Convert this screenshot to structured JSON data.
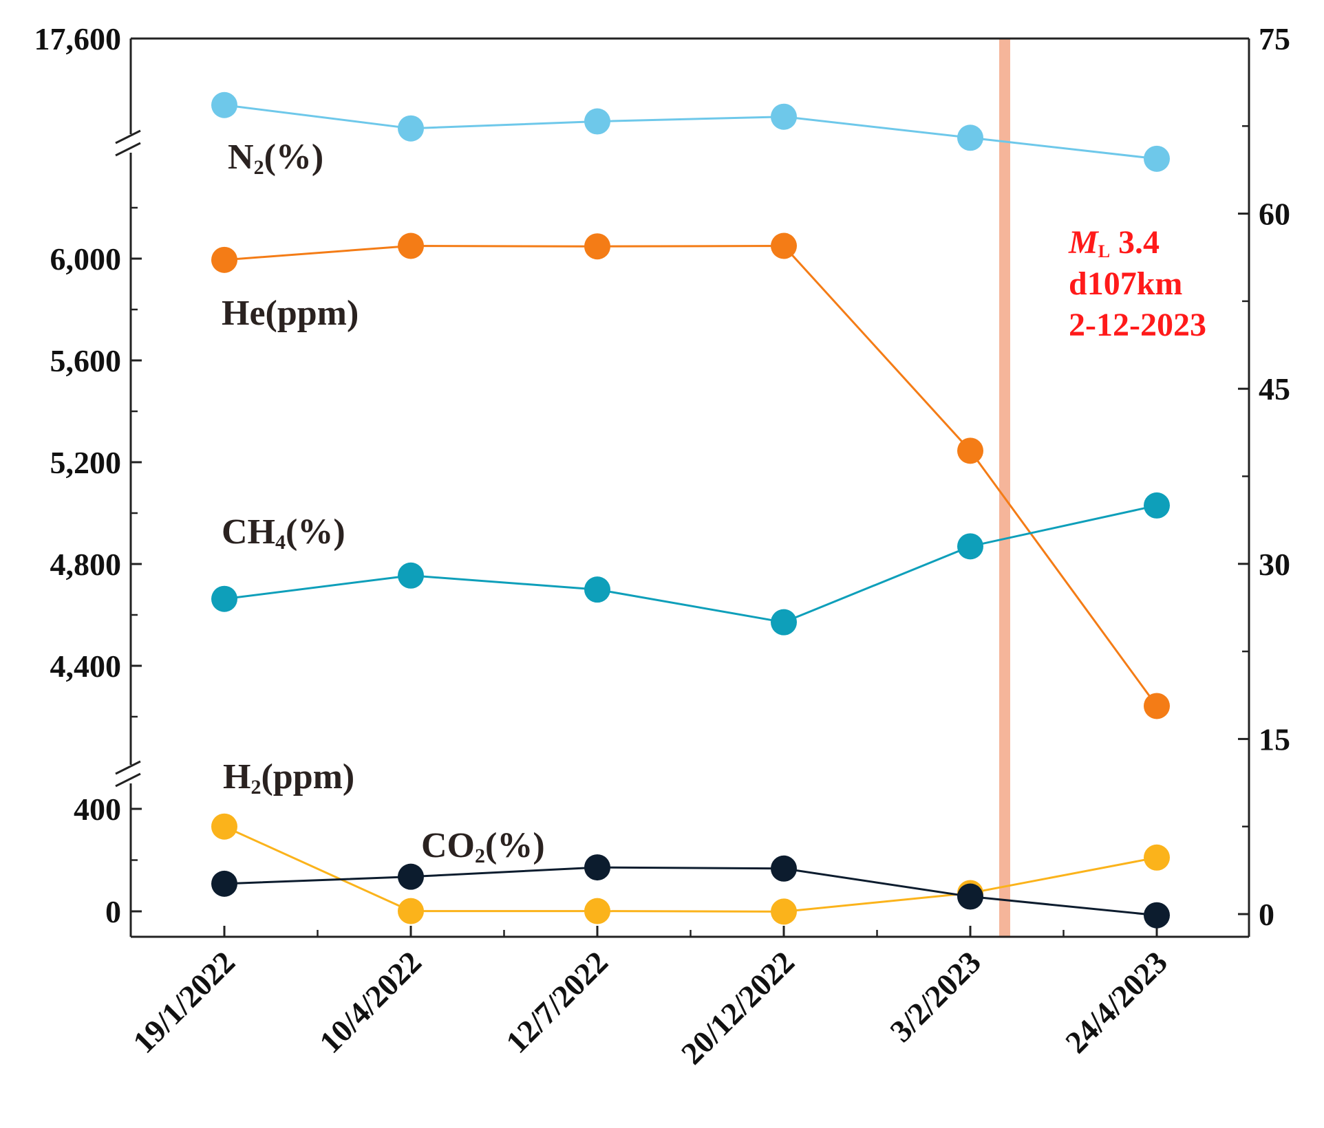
{
  "chart_data": {
    "type": "line",
    "title": "",
    "categories": [
      "19/1/2022",
      "10/4/2022",
      "12/7/2022",
      "20/12/2022",
      "3/2/2023",
      "24/4/2023"
    ],
    "left_axis": {
      "ticks": [
        "17,600",
        "6,000",
        "5,600",
        "5,200",
        "4,800",
        "4,400",
        "400",
        "0"
      ],
      "broken": true,
      "segments": [
        {
          "name": "H2 / CO2",
          "range": [
            -100,
            400
          ]
        },
        {
          "name": "CH4 / He",
          "range": [
            4200,
            6400
          ]
        },
        {
          "name": "N2",
          "range": [
            17500,
            17600
          ]
        }
      ]
    },
    "right_axis": {
      "ylim": [
        -2,
        75
      ],
      "ticks": [
        "75",
        "60",
        "45",
        "30",
        "15",
        "0"
      ],
      "minor_step": 7.5
    },
    "series": [
      {
        "name": "N2(%)",
        "label_main": "N",
        "label_sub": "2",
        "label_tail": "(%)",
        "axis": "right",
        "color": "#6ec8ea",
        "values": [
          69.3,
          67.3,
          67.9,
          68.3,
          66.5,
          64.7
        ]
      },
      {
        "name": "He(ppm)",
        "label_main": "He(ppm)",
        "label_sub": "",
        "label_tail": "",
        "axis": "left",
        "color": "#f47c16",
        "values": [
          5995,
          6050,
          6048,
          6050,
          5245,
          4242
        ]
      },
      {
        "name": "CH4(%)",
        "label_main": "CH",
        "label_sub": "4",
        "label_tail": "(%)",
        "axis": "right",
        "color": "#0e9fba",
        "values": [
          27.0,
          29.0,
          27.8,
          25.0,
          31.5,
          35.0
        ]
      },
      {
        "name": "H2(ppm)",
        "label_main": "H",
        "label_sub": "2",
        "label_tail": "(ppm)",
        "axis": "left",
        "color": "#fbb31b",
        "values": [
          331,
          1,
          1,
          -1,
          71.3,
          210
        ]
      },
      {
        "name": "CO2(%)",
        "label_main": "CO",
        "label_sub": "2",
        "label_tail": "(%)",
        "axis": "right",
        "color": "#0c1c2e",
        "values": [
          2.6,
          3.2,
          4.0,
          3.9,
          1.5,
          -0.1
        ]
      }
    ],
    "event": {
      "label_main": "M",
      "label_sub": "L",
      "label_tail": " 3.4",
      "depth": "d107km",
      "date": "2-12-2023",
      "color": "#f5b59a",
      "text_color": "#ff1a1a"
    }
  }
}
